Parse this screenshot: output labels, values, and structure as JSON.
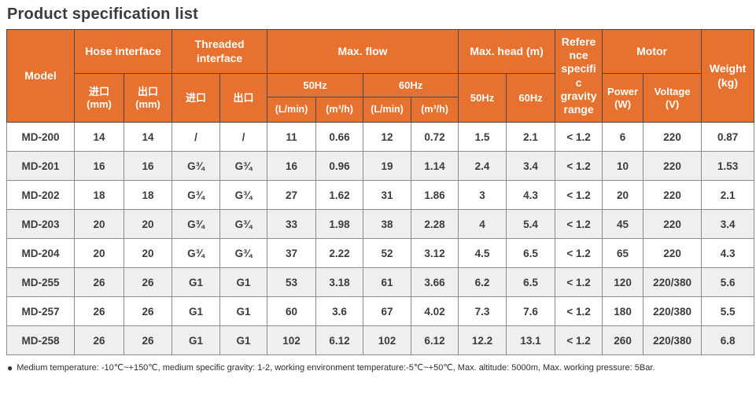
{
  "page_title": "Product specification list",
  "accent_color": "#e7712e",
  "table": {
    "header": {
      "model": "Model",
      "hose": "Hose interface",
      "hose_in": "进口\n(mm)",
      "hose_out": "出口\n(mm)",
      "threaded": "Threaded\ninterface",
      "thread_in": "进口",
      "thread_out": "出口",
      "max_flow": "Max. flow",
      "flow_50hz": "50Hz",
      "flow_60hz": "60Hz",
      "lmin_50": "(L/min)",
      "m3h_50": "(m³/h)",
      "lmin_60": "(L/min)",
      "m3h_60": "(m³/h)",
      "max_head": "Max. head (m)",
      "head_50hz": "50Hz",
      "head_60hz": "60Hz",
      "gravity": "Reference specific gravity range",
      "motor": "Motor",
      "power": "Power\n(W)",
      "voltage": "Voltage\n(V)",
      "weight": "Weight\n(kg)"
    },
    "rows": [
      [
        "MD-200",
        "14",
        "14",
        "/",
        "/",
        "11",
        "0.66",
        "12",
        "0.72",
        "1.5",
        "2.1",
        "< 1.2",
        "6",
        "220",
        "0.87"
      ],
      [
        "MD-201",
        "16",
        "16",
        "G¾",
        "G¾",
        "16",
        "0.96",
        "19",
        "1.14",
        "2.4",
        "3.4",
        "< 1.2",
        "10",
        "220",
        "1.53"
      ],
      [
        "MD-202",
        "18",
        "18",
        "G¾",
        "G¾",
        "27",
        "1.62",
        "31",
        "1.86",
        "3",
        "4.3",
        "< 1.2",
        "20",
        "220",
        "2.1"
      ],
      [
        "MD-203",
        "20",
        "20",
        "G¾",
        "G¾",
        "33",
        "1.98",
        "38",
        "2.28",
        "4",
        "5.4",
        "< 1.2",
        "45",
        "220",
        "3.4"
      ],
      [
        "MD-204",
        "20",
        "20",
        "G¾",
        "G¾",
        "37",
        "2.22",
        "52",
        "3.12",
        "4.5",
        "6.5",
        "< 1.2",
        "65",
        "220",
        "4.3"
      ],
      [
        "MD-255",
        "26",
        "26",
        "G1",
        "G1",
        "53",
        "3.18",
        "61",
        "3.66",
        "6.2",
        "6.5",
        "< 1.2",
        "120",
        "220/380",
        "5.6"
      ],
      [
        "MD-257",
        "26",
        "26",
        "G1",
        "G1",
        "60",
        "3.6",
        "67",
        "4.02",
        "7.3",
        "7.6",
        "< 1.2",
        "180",
        "220/380",
        "5.5"
      ],
      [
        "MD-258",
        "26",
        "26",
        "G1",
        "G1",
        "102",
        "6.12",
        "102",
        "6.12",
        "12.2",
        "13.1",
        "< 1.2",
        "260",
        "220/380",
        "6.8"
      ]
    ]
  },
  "footnote": {
    "bullet": "●",
    "text": "Medium temperature: -10℃~+150℃, medium specific gravity: 1-2, working environment temperature:-5℃~+50℃, Max. altitude: 5000m, Max. working pressure: 5Bar."
  }
}
